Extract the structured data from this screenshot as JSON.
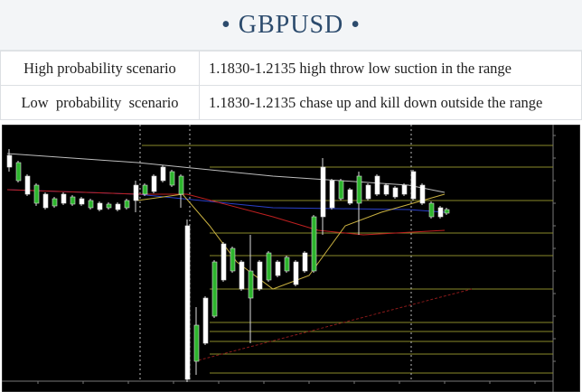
{
  "header": {
    "title": "• GBPUSD •"
  },
  "table": {
    "rows": [
      [
        "High probability scenario",
        "1.1830-1.2135 high throw low suction in the range"
      ],
      [
        "Low  probability  scenario",
        "1.1830-1.2135 chase up and kill down outside the range"
      ]
    ]
  }
}
